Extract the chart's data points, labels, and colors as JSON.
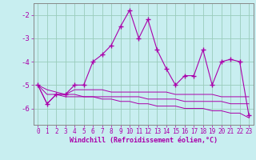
{
  "hours": [
    0,
    1,
    2,
    3,
    4,
    5,
    6,
    7,
    8,
    9,
    10,
    11,
    12,
    13,
    14,
    15,
    16,
    17,
    18,
    19,
    20,
    21,
    22,
    23
  ],
  "windchill": [
    -5.0,
    -5.8,
    -5.4,
    -5.4,
    -5.0,
    -5.0,
    -4.0,
    -3.7,
    -3.3,
    -2.5,
    -1.8,
    -3.0,
    -2.2,
    -3.5,
    -4.3,
    -5.0,
    -4.6,
    -4.6,
    -3.5,
    -5.0,
    -4.0,
    -3.9,
    -4.0,
    -6.3
  ],
  "line2": [
    -5.0,
    -5.8,
    -5.4,
    -5.4,
    -5.2,
    -5.2,
    -5.2,
    -5.2,
    -5.3,
    -5.3,
    -5.3,
    -5.3,
    -5.3,
    -5.3,
    -5.3,
    -5.4,
    -5.4,
    -5.4,
    -5.4,
    -5.4,
    -5.5,
    -5.5,
    -5.5,
    -5.5
  ],
  "line3": [
    -5.0,
    -5.4,
    -5.4,
    -5.5,
    -5.5,
    -5.5,
    -5.5,
    -5.5,
    -5.5,
    -5.5,
    -5.5,
    -5.5,
    -5.6,
    -5.6,
    -5.6,
    -5.6,
    -5.7,
    -5.7,
    -5.7,
    -5.7,
    -5.7,
    -5.8,
    -5.8,
    -5.8
  ],
  "line4": [
    -5.0,
    -5.2,
    -5.3,
    -5.4,
    -5.4,
    -5.5,
    -5.5,
    -5.6,
    -5.6,
    -5.7,
    -5.7,
    -5.8,
    -5.8,
    -5.9,
    -5.9,
    -5.9,
    -6.0,
    -6.0,
    -6.0,
    -6.1,
    -6.1,
    -6.2,
    -6.2,
    -6.4
  ],
  "bg_color": "#c8eef0",
  "line_color": "#aa00aa",
  "grid_color": "#99ccbb",
  "ylabel_ticks": [
    -2,
    -3,
    -4,
    -5,
    -6
  ],
  "ylim": [
    -6.7,
    -1.5
  ],
  "xlim": [
    -0.5,
    23.5
  ],
  "xlabel": "Windchill (Refroidissement éolien,°C)"
}
